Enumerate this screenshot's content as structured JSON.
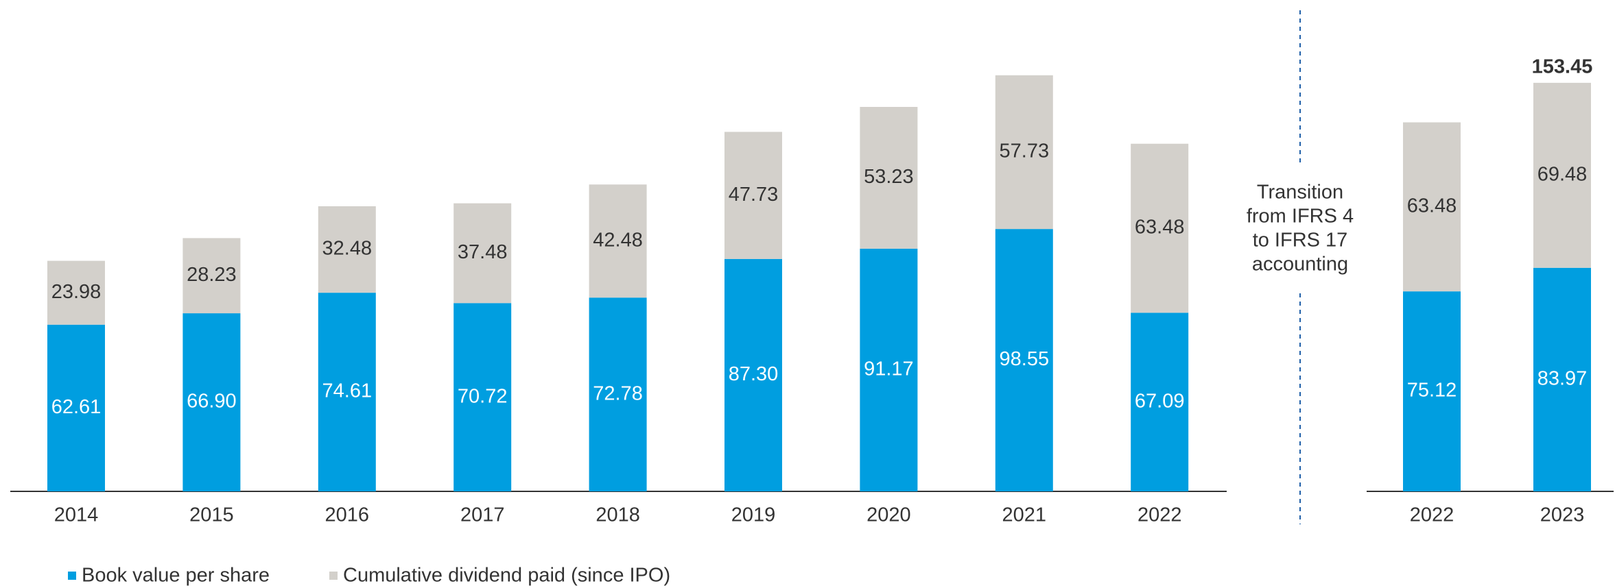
{
  "chart_data": [
    {
      "type": "stacked_bar",
      "categories": [
        "2014",
        "2015",
        "2016",
        "2017",
        "2018",
        "2019",
        "2020",
        "2021",
        "2022"
      ],
      "series": [
        {
          "name": "Book value per share",
          "color": "#009ee0",
          "values": [
            62.61,
            66.9,
            74.61,
            70.72,
            72.78,
            87.3,
            91.17,
            98.55,
            67.09
          ],
          "value_labels": [
            "62.61",
            "66.90",
            "74.61",
            "70.72",
            "72.78",
            "87.30",
            "91.17",
            "98.55",
            "67.09"
          ]
        },
        {
          "name": "Cumulative dividend paid (since IPO)",
          "color": "#d3d0cb",
          "values": [
            23.98,
            28.23,
            32.48,
            37.48,
            42.48,
            47.73,
            53.23,
            57.73,
            63.48
          ],
          "value_labels": [
            "23.98",
            "28.23",
            "32.48",
            "37.48",
            "42.48",
            "47.73",
            "53.23",
            "57.73",
            "63.48"
          ]
        }
      ]
    },
    {
      "type": "stacked_bar",
      "categories": [
        "2022",
        "2023"
      ],
      "series": [
        {
          "name": "Book value per share",
          "color": "#009ee0",
          "values": [
            75.12,
            83.97
          ],
          "value_labels": [
            "75.12",
            "83.97"
          ]
        },
        {
          "name": "Cumulative dividend paid (since IPO)",
          "color": "#d3d0cb",
          "values": [
            63.48,
            69.48
          ],
          "value_labels": [
            "63.48",
            "69.48"
          ]
        }
      ],
      "totals": [
        null,
        153.45
      ]
    }
  ],
  "annotation": [
    "Transition",
    "from IFRS 4",
    "to IFRS 17",
    "accounting"
  ]
}
